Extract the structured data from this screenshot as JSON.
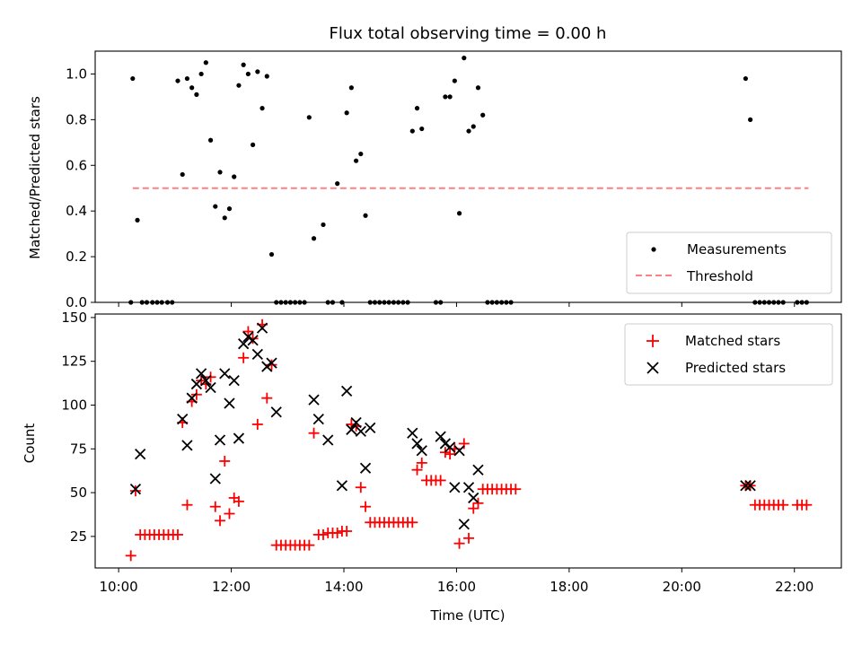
{
  "chart_data": [
    {
      "type": "scatter",
      "title": "Flux total observing time = 0.00 h",
      "xlabel": "",
      "ylabel": "Matched/Predicted stars",
      "xlim": [
        "09:35",
        "22:50"
      ],
      "ylim": [
        0.0,
        1.1
      ],
      "yticks": [
        0.0,
        0.2,
        0.4,
        0.6,
        0.8,
        1.0
      ],
      "ytick_labels": [
        "0.0",
        "0.2",
        "0.4",
        "0.6",
        "0.8",
        "1.0"
      ],
      "grid": false,
      "legend_position": "lower-right",
      "threshold": {
        "name": "Threshold",
        "y": 0.5,
        "x_start": "10:15",
        "x_end": "22:15",
        "color": "#ff8080"
      },
      "series": [
        {
          "name": "Measurements",
          "color": "#000000",
          "marker": "dot",
          "points": [
            [
              "10:13",
              0.0
            ],
            [
              "10:15",
              0.98
            ],
            [
              "10:20",
              0.36
            ],
            [
              "10:25",
              0.0
            ],
            [
              "10:30",
              0.0
            ],
            [
              "10:36",
              0.0
            ],
            [
              "10:41",
              0.0
            ],
            [
              "10:46",
              0.0
            ],
            [
              "10:52",
              0.0
            ],
            [
              "10:57",
              0.0
            ],
            [
              "11:03",
              0.97
            ],
            [
              "11:08",
              0.56
            ],
            [
              "11:13",
              0.98
            ],
            [
              "11:18",
              0.94
            ],
            [
              "11:23",
              0.91
            ],
            [
              "11:28",
              1.0
            ],
            [
              "11:33",
              1.05
            ],
            [
              "11:38",
              0.71
            ],
            [
              "11:43",
              0.42
            ],
            [
              "11:48",
              0.57
            ],
            [
              "11:53",
              0.37
            ],
            [
              "11:58",
              0.41
            ],
            [
              "12:03",
              0.55
            ],
            [
              "12:08",
              0.95
            ],
            [
              "12:13",
              1.04
            ],
            [
              "12:18",
              1.0
            ],
            [
              "12:23",
              0.69
            ],
            [
              "12:28",
              1.01
            ],
            [
              "12:33",
              0.85
            ],
            [
              "12:38",
              0.99
            ],
            [
              "12:43",
              0.21
            ],
            [
              "12:48",
              0.0
            ],
            [
              "12:53",
              0.0
            ],
            [
              "12:58",
              0.0
            ],
            [
              "13:03",
              0.0
            ],
            [
              "13:08",
              0.0
            ],
            [
              "13:13",
              0.0
            ],
            [
              "13:18",
              0.0
            ],
            [
              "13:23",
              0.81
            ],
            [
              "13:28",
              0.28
            ],
            [
              "13:38",
              0.34
            ],
            [
              "13:43",
              0.0
            ],
            [
              "13:48",
              0.0
            ],
            [
              "13:53",
              0.52
            ],
            [
              "13:58",
              0.0
            ],
            [
              "14:03",
              0.83
            ],
            [
              "14:08",
              0.94
            ],
            [
              "14:13",
              0.62
            ],
            [
              "14:18",
              0.65
            ],
            [
              "14:23",
              0.38
            ],
            [
              "14:28",
              0.0
            ],
            [
              "14:33",
              0.0
            ],
            [
              "14:38",
              0.0
            ],
            [
              "14:43",
              0.0
            ],
            [
              "14:48",
              0.0
            ],
            [
              "14:53",
              0.0
            ],
            [
              "14:58",
              0.0
            ],
            [
              "15:03",
              0.0
            ],
            [
              "15:08",
              0.0
            ],
            [
              "15:13",
              0.75
            ],
            [
              "15:18",
              0.85
            ],
            [
              "15:23",
              0.76
            ],
            [
              "15:38",
              0.0
            ],
            [
              "15:43",
              0.0
            ],
            [
              "15:48",
              0.9
            ],
            [
              "15:53",
              0.9
            ],
            [
              "15:58",
              0.97
            ],
            [
              "16:03",
              0.39
            ],
            [
              "16:08",
              1.07
            ],
            [
              "16:13",
              0.75
            ],
            [
              "16:18",
              0.77
            ],
            [
              "16:23",
              0.94
            ],
            [
              "16:28",
              0.82
            ],
            [
              "16:33",
              0.0
            ],
            [
              "16:38",
              0.0
            ],
            [
              "16:43",
              0.0
            ],
            [
              "16:48",
              0.0
            ],
            [
              "16:53",
              0.0
            ],
            [
              "16:58",
              0.0
            ],
            [
              "21:08",
              0.98
            ],
            [
              "21:13",
              0.8
            ],
            [
              "21:18",
              0.0
            ],
            [
              "21:23",
              0.0
            ],
            [
              "21:28",
              0.0
            ],
            [
              "21:33",
              0.0
            ],
            [
              "21:38",
              0.0
            ],
            [
              "21:43",
              0.0
            ],
            [
              "21:48",
              0.0
            ],
            [
              "22:03",
              0.0
            ],
            [
              "22:08",
              0.0
            ],
            [
              "22:13",
              0.0
            ]
          ]
        }
      ]
    },
    {
      "type": "scatter",
      "title": "",
      "xlabel": "Time (UTC)",
      "ylabel": "Count",
      "xlim": [
        "09:35",
        "22:50"
      ],
      "ylim": [
        7,
        152
      ],
      "xticks": [
        "10:00",
        "12:00",
        "14:00",
        "16:00",
        "18:00",
        "20:00",
        "22:00"
      ],
      "yticks": [
        25,
        50,
        75,
        100,
        125,
        150
      ],
      "ytick_labels": [
        "25",
        "50",
        "75",
        "100",
        "125",
        "150"
      ],
      "grid": false,
      "legend_position": "upper-right",
      "series": [
        {
          "name": "Matched stars",
          "color": "#ff0000",
          "marker": "plus",
          "points": [
            [
              "10:13",
              14
            ],
            [
              "10:18",
              51
            ],
            [
              "10:23",
              26
            ],
            [
              "10:28",
              26
            ],
            [
              "10:33",
              26
            ],
            [
              "10:38",
              26
            ],
            [
              "10:43",
              26
            ],
            [
              "10:48",
              26
            ],
            [
              "10:53",
              26
            ],
            [
              "10:58",
              26
            ],
            [
              "11:03",
              26
            ],
            [
              "11:08",
              90
            ],
            [
              "11:13",
              43
            ],
            [
              "11:18",
              102
            ],
            [
              "11:23",
              106
            ],
            [
              "11:28",
              114
            ],
            [
              "11:33",
              112
            ],
            [
              "11:38",
              116
            ],
            [
              "11:43",
              42
            ],
            [
              "11:48",
              34
            ],
            [
              "11:53",
              68
            ],
            [
              "11:58",
              38
            ],
            [
              "12:03",
              47
            ],
            [
              "12:08",
              45
            ],
            [
              "12:13",
              127
            ],
            [
              "12:18",
              142
            ],
            [
              "12:23",
              138
            ],
            [
              "12:28",
              89
            ],
            [
              "12:33",
              146
            ],
            [
              "12:38",
              104
            ],
            [
              "12:43",
              123
            ],
            [
              "12:48",
              20
            ],
            [
              "12:53",
              20
            ],
            [
              "12:58",
              20
            ],
            [
              "13:03",
              20
            ],
            [
              "13:08",
              20
            ],
            [
              "13:13",
              20
            ],
            [
              "13:18",
              20
            ],
            [
              "13:23",
              20
            ],
            [
              "13:28",
              84
            ],
            [
              "13:33",
              26
            ],
            [
              "13:38",
              26
            ],
            [
              "13:43",
              27
            ],
            [
              "13:48",
              27
            ],
            [
              "13:53",
              27
            ],
            [
              "13:58",
              28
            ],
            [
              "14:03",
              28
            ],
            [
              "14:08",
              89
            ],
            [
              "14:13",
              88
            ],
            [
              "14:18",
              53
            ],
            [
              "14:23",
              42
            ],
            [
              "14:28",
              33
            ],
            [
              "14:33",
              33
            ],
            [
              "14:38",
              33
            ],
            [
              "14:43",
              33
            ],
            [
              "14:48",
              33
            ],
            [
              "14:53",
              33
            ],
            [
              "14:58",
              33
            ],
            [
              "15:03",
              33
            ],
            [
              "15:08",
              33
            ],
            [
              "15:13",
              33
            ],
            [
              "15:18",
              63
            ],
            [
              "15:23",
              67
            ],
            [
              "15:28",
              57
            ],
            [
              "15:33",
              57
            ],
            [
              "15:38",
              57
            ],
            [
              "15:43",
              57
            ],
            [
              "15:48",
              73
            ],
            [
              "15:53",
              72
            ],
            [
              "15:58",
              75
            ],
            [
              "16:03",
              21
            ],
            [
              "16:08",
              78
            ],
            [
              "16:13",
              24
            ],
            [
              "16:18",
              41
            ],
            [
              "16:23",
              44
            ],
            [
              "16:28",
              52
            ],
            [
              "16:33",
              52
            ],
            [
              "16:38",
              52
            ],
            [
              "16:43",
              52
            ],
            [
              "16:48",
              52
            ],
            [
              "16:53",
              52
            ],
            [
              "16:58",
              52
            ],
            [
              "17:03",
              52
            ],
            [
              "21:08",
              54
            ],
            [
              "21:13",
              54
            ],
            [
              "21:18",
              43
            ],
            [
              "21:23",
              43
            ],
            [
              "21:28",
              43
            ],
            [
              "21:33",
              43
            ],
            [
              "21:38",
              43
            ],
            [
              "21:43",
              43
            ],
            [
              "21:48",
              43
            ],
            [
              "22:03",
              43
            ],
            [
              "22:08",
              43
            ],
            [
              "22:13",
              43
            ]
          ]
        },
        {
          "name": "Predicted stars",
          "color": "#000000",
          "marker": "x",
          "points": [
            [
              "10:18",
              52
            ],
            [
              "10:23",
              72
            ],
            [
              "11:08",
              92
            ],
            [
              "11:13",
              77
            ],
            [
              "11:18",
              104
            ],
            [
              "11:23",
              112
            ],
            [
              "11:28",
              118
            ],
            [
              "11:33",
              114
            ],
            [
              "11:38",
              110
            ],
            [
              "11:43",
              58
            ],
            [
              "11:48",
              80
            ],
            [
              "11:53",
              118
            ],
            [
              "11:58",
              101
            ],
            [
              "12:03",
              114
            ],
            [
              "12:08",
              81
            ],
            [
              "12:13",
              135
            ],
            [
              "12:18",
              139
            ],
            [
              "12:23",
              137
            ],
            [
              "12:28",
              129
            ],
            [
              "12:33",
              144
            ],
            [
              "12:38",
              122
            ],
            [
              "12:43",
              124
            ],
            [
              "12:48",
              96
            ],
            [
              "13:28",
              103
            ],
            [
              "13:33",
              92
            ],
            [
              "13:43",
              80
            ],
            [
              "13:58",
              54
            ],
            [
              "14:03",
              108
            ],
            [
              "14:08",
              86
            ],
            [
              "14:13",
              90
            ],
            [
              "14:18",
              85
            ],
            [
              "14:23",
              64
            ],
            [
              "14:28",
              87
            ],
            [
              "15:13",
              84
            ],
            [
              "15:18",
              78
            ],
            [
              "15:23",
              74
            ],
            [
              "15:43",
              82
            ],
            [
              "15:48",
              78
            ],
            [
              "15:53",
              76
            ],
            [
              "15:58",
              53
            ],
            [
              "16:03",
              74
            ],
            [
              "16:08",
              32
            ],
            [
              "16:13",
              53
            ],
            [
              "16:18",
              47
            ],
            [
              "16:23",
              63
            ],
            [
              "21:08",
              54
            ],
            [
              "21:13",
              54
            ]
          ]
        }
      ]
    }
  ]
}
